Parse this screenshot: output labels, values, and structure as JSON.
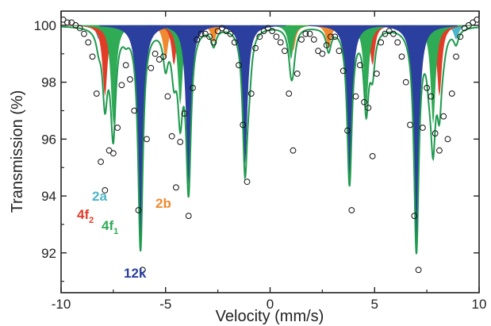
{
  "chart_data": {
    "type": "scatter",
    "title": "",
    "xlabel": "Velocity (mm/s)",
    "ylabel": "Transmission (%)",
    "xlim": [
      -10,
      10
    ],
    "ylim": [
      90.6,
      100.5
    ],
    "xticks": [
      -10,
      -5,
      0,
      5,
      10
    ],
    "yticks": [
      92,
      94,
      96,
      98,
      100
    ],
    "grid": false,
    "legend": "none",
    "colors": {
      "2a": "#4cb5c8",
      "4f2": "#e03c28",
      "4f1": "#2faa55",
      "12k": "#2b3f9e",
      "2b": "#f08a2e",
      "data_points": "#111111",
      "fit": "#1f9a4e"
    },
    "site_labels": {
      "s2a": "2a",
      "s4f2_main": "4f",
      "s4f2_sub": "2",
      "s4f1_main": "4f",
      "s4f1_sub": "1",
      "s12k": "12k",
      "s2b": "2b"
    },
    "components": [
      {
        "site": "2a",
        "line_positions": [
          -8.2,
          -7.6,
          -6.9,
          7.7,
          8.3,
          8.9
        ],
        "depths": [
          0.5,
          0.35,
          0.25,
          0.25,
          0.35,
          0.5
        ]
      },
      {
        "site": "4f2",
        "line_positions": [
          -7.9,
          -4.6,
          4.9,
          8.1
        ],
        "depths": [
          2.5,
          1.4,
          1.4,
          2.5
        ]
      },
      {
        "site": "4f1",
        "line_positions": [
          -7.5,
          -4.3,
          -1.0,
          1.0,
          4.6,
          7.8
        ],
        "depths": [
          3.5,
          2.8,
          1.2,
          1.2,
          2.8,
          3.5
        ]
      },
      {
        "site": "12k",
        "line_positions": [
          -6.2,
          -3.9,
          -1.2,
          3.8,
          7.0
        ],
        "depths": [
          7.8,
          5.6,
          4.9,
          5.5,
          7.8
        ]
      },
      {
        "site": "2b",
        "line_positions": [
          -5.0,
          -2.7,
          1.1,
          2.8,
          7.6
        ],
        "depths": [
          1.2,
          0.6,
          0.9,
          0.8,
          0.9
        ]
      }
    ],
    "baseline": 100.0,
    "data_points_x": [
      -9.9,
      -9.7,
      -9.5,
      -9.3,
      -9.1,
      -8.9,
      -8.7,
      -8.5,
      -8.3,
      -8.1,
      -7.9,
      -7.7,
      -7.5,
      -7.3,
      -7.1,
      -6.9,
      -6.7,
      -6.5,
      -6.3,
      -6.1,
      -5.9,
      -5.7,
      -5.5,
      -5.3,
      -5.1,
      -4.9,
      -4.7,
      -4.5,
      -4.3,
      -4.1,
      -3.9,
      -3.7,
      -3.5,
      -3.3,
      -3.1,
      -2.9,
      -2.7,
      -2.5,
      -2.3,
      -2.1,
      -1.9,
      -1.7,
      -1.5,
      -1.3,
      -1.1,
      -0.9,
      -0.7,
      -0.5,
      -0.3,
      -0.1,
      0.1,
      0.3,
      0.5,
      0.7,
      0.9,
      1.1,
      1.3,
      1.5,
      1.7,
      1.9,
      2.1,
      2.3,
      2.5,
      2.7,
      2.9,
      3.1,
      3.3,
      3.5,
      3.7,
      3.9,
      4.1,
      4.3,
      4.5,
      4.7,
      4.9,
      5.1,
      5.3,
      5.5,
      5.7,
      5.9,
      6.1,
      6.3,
      6.5,
      6.7,
      6.9,
      7.1,
      7.3,
      7.5,
      7.7,
      7.9,
      8.1,
      8.3,
      8.5,
      8.7,
      8.9,
      9.1,
      9.3,
      9.5,
      9.7,
      9.9
    ],
    "data_points_y": [
      100.2,
      100.1,
      100.1,
      100.0,
      99.9,
      99.7,
      99.4,
      98.9,
      97.6,
      95.2,
      94.2,
      95.6,
      95.5,
      96.4,
      97.9,
      98.6,
      98.1,
      97.0,
      93.5,
      91.4,
      96.0,
      98.5,
      99.0,
      98.8,
      98.9,
      97.5,
      96.1,
      94.3,
      95.9,
      96.9,
      93.3,
      97.8,
      99.5,
      99.7,
      99.7,
      99.6,
      99.4,
      99.8,
      99.9,
      99.8,
      99.7,
      99.4,
      98.6,
      96.5,
      94.5,
      97.6,
      99.2,
      99.6,
      99.8,
      99.9,
      99.8,
      99.6,
      99.4,
      99.1,
      97.6,
      95.6,
      98.3,
      99.5,
      99.7,
      99.7,
      99.5,
      99.1,
      99.0,
      99.3,
      99.6,
      99.6,
      99.1,
      98.4,
      96.3,
      93.5,
      97.5,
      98.6,
      97.3,
      97.1,
      95.4,
      98.3,
      99.4,
      99.7,
      99.8,
      99.7,
      99.4,
      98.9,
      98.0,
      96.5,
      93.3,
      91.4,
      96.4,
      97.8,
      97.5,
      96.2,
      95.6,
      96.8,
      96.0,
      97.6,
      98.9,
      99.6,
      99.9,
      100.0,
      100.1,
      100.2
    ]
  }
}
